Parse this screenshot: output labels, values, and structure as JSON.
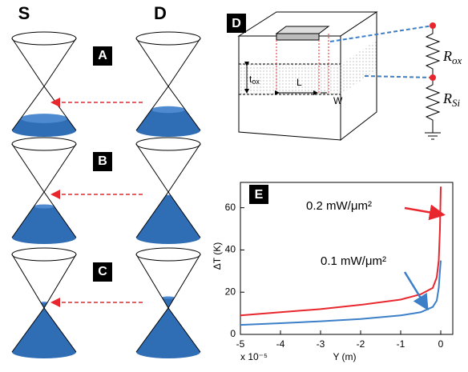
{
  "left_panel": {
    "source_label": "S",
    "drain_label": "D",
    "rows": [
      {
        "label": "A"
      },
      {
        "label": "B"
      },
      {
        "label": "C"
      }
    ]
  },
  "panel_d": {
    "label": "D",
    "thickness_label": {
      "text": "t",
      "subscript": "ox"
    },
    "length_label": "L",
    "width_label": "W",
    "resistors": [
      {
        "symbol": "R",
        "subscript": "ox"
      },
      {
        "symbol": "R",
        "subscript": "Si"
      }
    ]
  },
  "chart_data": {
    "type": "line",
    "panel_label": "E",
    "x_label": "Y (m)",
    "y_label": "ΔT (K)",
    "x_multiplier": "x 10⁻⁵",
    "x": [
      -5,
      -4,
      -3,
      -2,
      -1,
      -0.5,
      -0.2,
      -0.1,
      -0.05,
      -0.02,
      0
    ],
    "series": [
      {
        "name": "0.2 mW/μm²",
        "color": "#e8262d",
        "values": [
          9,
          10.5,
          12,
          14,
          16.5,
          19,
          22,
          27,
          35,
          50,
          70
        ]
      },
      {
        "name": "0.1 mW/μm²",
        "color": "#3b7fc8",
        "values": [
          4.5,
          5.3,
          6.2,
          7.3,
          9,
          10.5,
          13,
          16,
          22,
          30,
          35
        ]
      }
    ],
    "xlim": [
      -5,
      0.3
    ],
    "ylim": [
      0,
      72
    ],
    "xticks": [
      -5,
      -4,
      -3,
      -2,
      -1,
      0
    ],
    "yticks": [
      0,
      20,
      40,
      60
    ]
  }
}
